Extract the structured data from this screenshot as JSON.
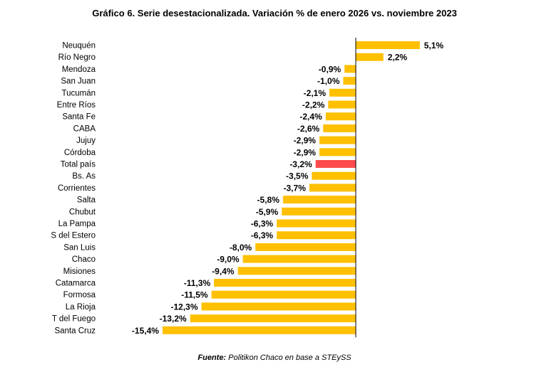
{
  "title": "Gráfico 6. Serie desestacionalizada. Variación % de enero 2026 vs. noviembre 2023",
  "source": {
    "label": "Fuente:",
    "text": "Politikon Chaco en base a STEySS"
  },
  "colors": {
    "bar": "#FFC000",
    "highlight": "#FF4B4B",
    "axis": "#000000"
  },
  "chart_data": {
    "type": "bar",
    "orientation": "horizontal",
    "title": "Gráfico 6. Serie desestacionalizada. Variación % de enero 2026 vs. noviembre 2023",
    "categories": [
      "Neuquén",
      "Río Negro",
      "Mendoza",
      "San Juan",
      "Tucumán",
      "Entre Ríos",
      "Santa Fe",
      "CABA",
      "Jujuy",
      "Córdoba",
      "Total país",
      "Bs. As",
      "Corrientes",
      "Salta",
      "Chubut",
      "La Pampa",
      "S del Estero",
      "San Luis",
      "Chaco",
      "Misiones",
      "Catamarca",
      "Formosa",
      "La Rioja",
      "T del Fuego",
      "Santa Cruz"
    ],
    "values": [
      5.1,
      2.2,
      -0.9,
      -1.0,
      -2.1,
      -2.2,
      -2.4,
      -2.6,
      -2.9,
      -2.9,
      -3.2,
      -3.5,
      -3.7,
      -5.8,
      -5.9,
      -6.3,
      -6.3,
      -8.0,
      -9.0,
      -9.4,
      -11.3,
      -11.5,
      -12.3,
      -13.2,
      -15.4
    ],
    "labels": [
      "5,1%",
      "2,2%",
      "-0,9%",
      "-1,0%",
      "-2,1%",
      "-2,2%",
      "-2,4%",
      "-2,6%",
      "-2,9%",
      "-2,9%",
      "-3,2%",
      "-3,5%",
      "-3,7%",
      "-5,8%",
      "-5,9%",
      "-6,3%",
      "-6,3%",
      "-8,0%",
      "-9,0%",
      "-9,4%",
      "-11,3%",
      "-11,5%",
      "-12,3%",
      "-13,2%",
      "-15,4%"
    ],
    "highlight": "Total país",
    "xlabel": "",
    "ylabel": "",
    "grid": false,
    "legend": "none"
  }
}
